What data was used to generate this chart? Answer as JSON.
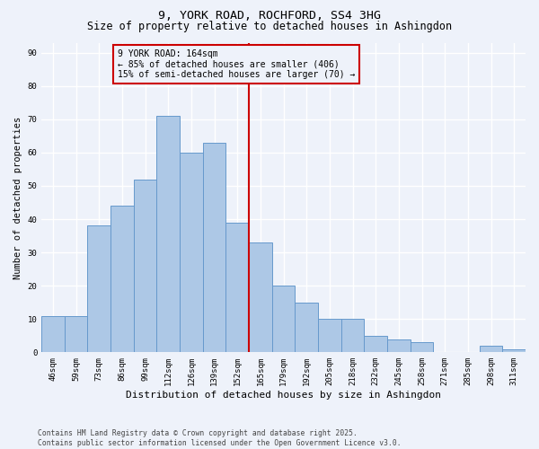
{
  "title1": "9, YORK ROAD, ROCHFORD, SS4 3HG",
  "title2": "Size of property relative to detached houses in Ashingdon",
  "xlabel": "Distribution of detached houses by size in Ashingdon",
  "ylabel": "Number of detached properties",
  "categories": [
    "46sqm",
    "59sqm",
    "73sqm",
    "86sqm",
    "99sqm",
    "112sqm",
    "126sqm",
    "139sqm",
    "152sqm",
    "165sqm",
    "179sqm",
    "192sqm",
    "205sqm",
    "218sqm",
    "232sqm",
    "245sqm",
    "258sqm",
    "271sqm",
    "285sqm",
    "298sqm",
    "311sqm"
  ],
  "values": [
    11,
    11,
    38,
    44,
    52,
    71,
    60,
    63,
    39,
    33,
    20,
    15,
    10,
    10,
    5,
    4,
    3,
    0,
    0,
    2,
    1
  ],
  "bar_color": "#adc8e6",
  "bar_edge_color": "#6699cc",
  "ref_line_color": "#cc0000",
  "box_edge_color": "#cc0000",
  "annotation_line1": "9 YORK ROAD: 164sqm",
  "annotation_line2": "← 85% of detached houses are smaller (406)",
  "annotation_line3": "15% of semi-detached houses are larger (70) →",
  "ylim": [
    0,
    93
  ],
  "yticks": [
    0,
    10,
    20,
    30,
    40,
    50,
    60,
    70,
    80,
    90
  ],
  "footer1": "Contains HM Land Registry data © Crown copyright and database right 2025.",
  "footer2": "Contains public sector information licensed under the Open Government Licence v3.0.",
  "bg_color": "#eef2fa",
  "grid_color": "#ffffff",
  "title_fontsize": 9.5,
  "subtitle_fontsize": 8.5,
  "tick_fontsize": 6.5,
  "ylabel_fontsize": 7.5,
  "xlabel_fontsize": 8,
  "footer_fontsize": 5.8,
  "annot_fontsize": 7
}
